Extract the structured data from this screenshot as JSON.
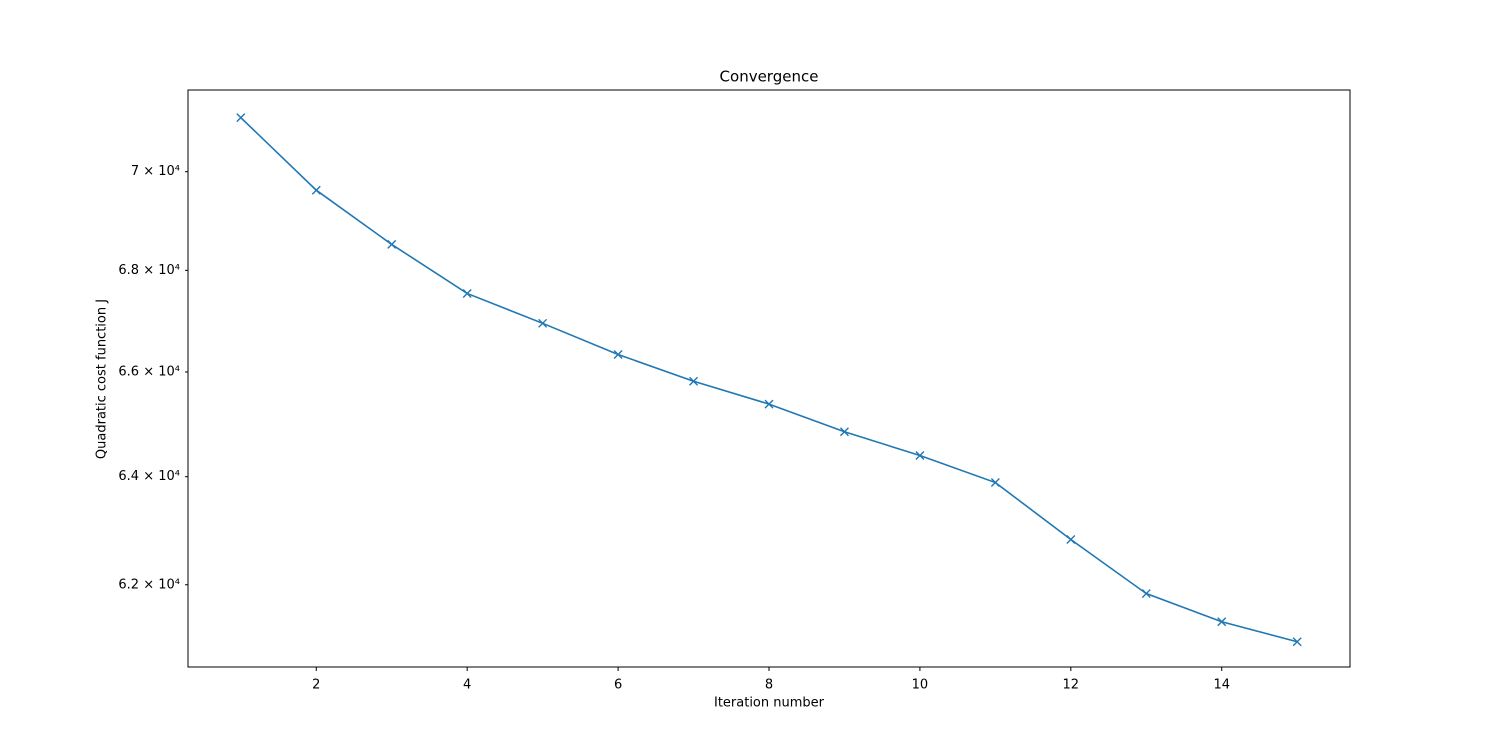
{
  "chart_data": {
    "type": "line",
    "title": "Convergence",
    "x_label": "Iteration number",
    "y_label": "Quadratic cost function J",
    "x": [
      1,
      2,
      3,
      4,
      5,
      6,
      7,
      8,
      9,
      10,
      11,
      12,
      13,
      14,
      15
    ],
    "values": [
      71120,
      69620,
      68520,
      67540,
      66950,
      66340,
      65820,
      65380,
      64850,
      64400,
      63890,
      62830,
      61840,
      61330,
      60970
    ],
    "color": "#1f77b4",
    "marker": "x",
    "yscale": "log",
    "xlim": [
      0.3,
      15.7
    ],
    "xticks": [
      2,
      4,
      6,
      8,
      10,
      12,
      14
    ],
    "ylim": [
      60520,
      71700
    ],
    "yticks": [
      {
        "value": 62000,
        "label": "6.2 × 10⁴"
      },
      {
        "value": 64000,
        "label": "6.4 × 10⁴"
      },
      {
        "value": 66000,
        "label": "6.6 × 10⁴"
      },
      {
        "value": 68000,
        "label": "6.8 × 10⁴"
      },
      {
        "value": 70000,
        "label": "7 × 10⁴"
      }
    ],
    "grid": false
  }
}
